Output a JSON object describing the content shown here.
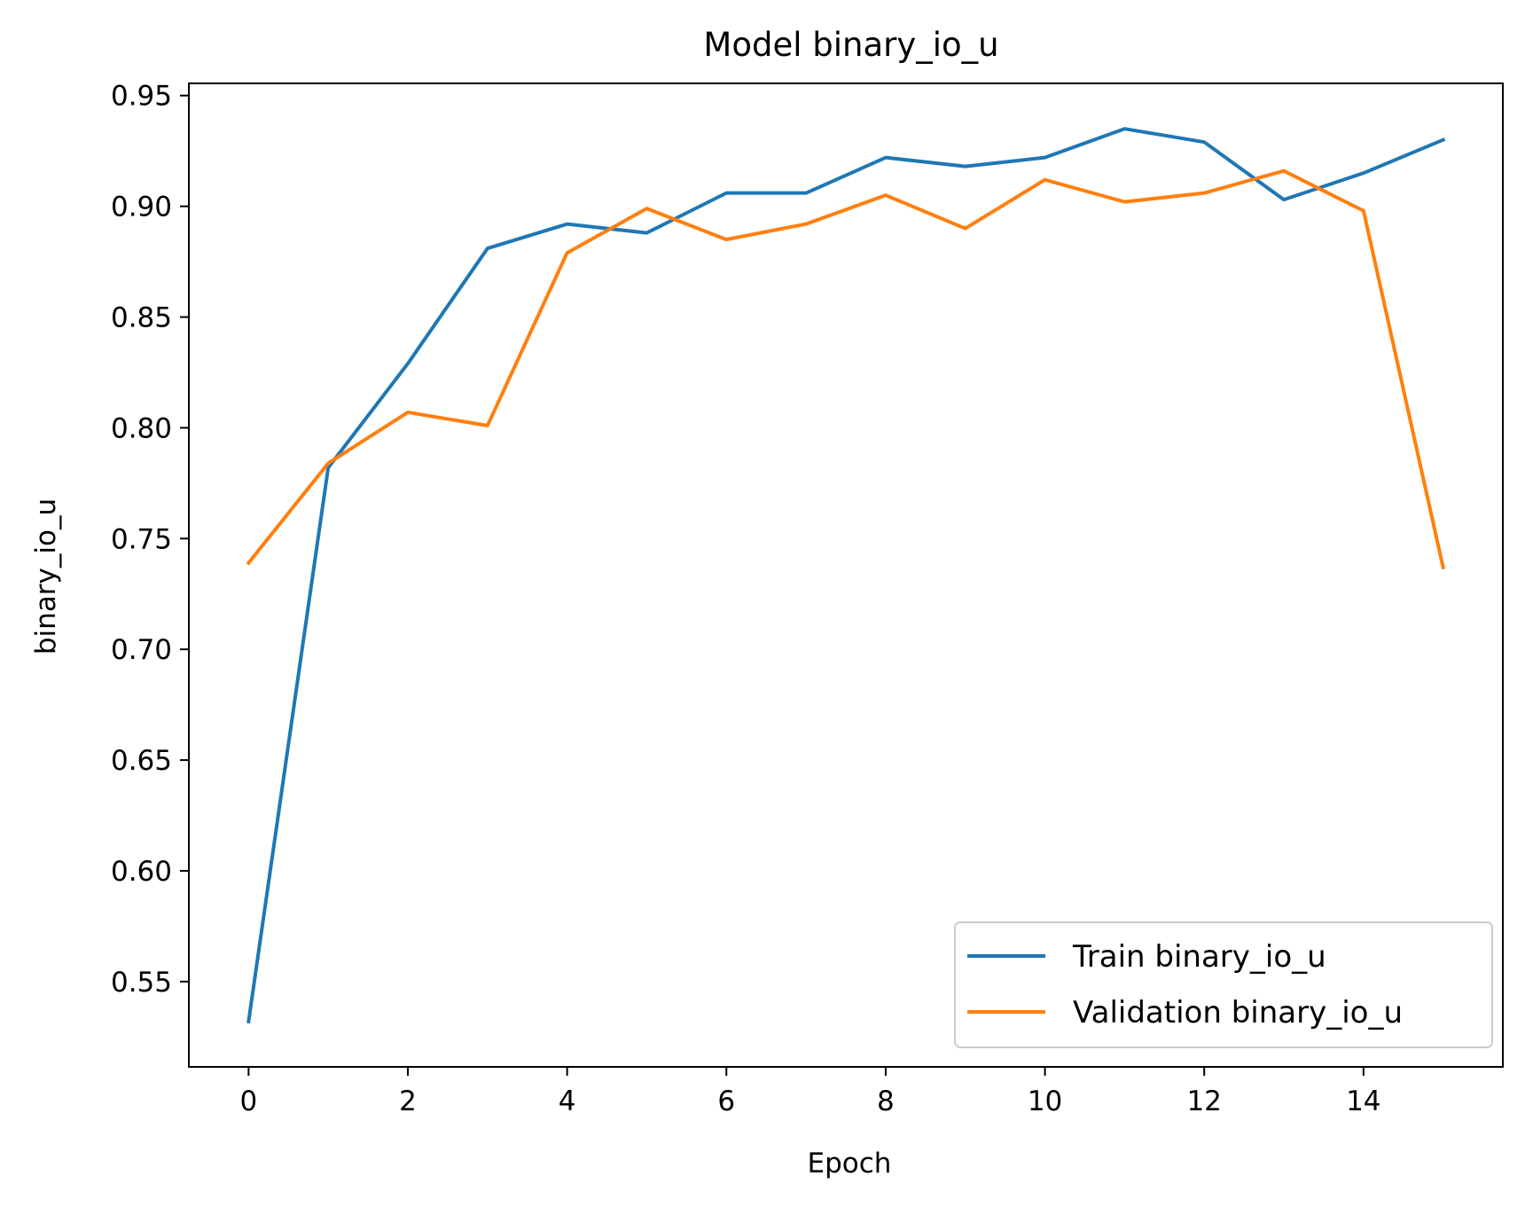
{
  "chart_data": {
    "type": "line",
    "title": "Model binary_io_u",
    "xlabel": "Epoch",
    "ylabel": "binary_io_u",
    "xlim": [
      -0.75,
      15.75
    ],
    "ylim": [
      0.5115,
      0.9555
    ],
    "x_ticks": [
      0,
      2,
      4,
      6,
      8,
      10,
      12,
      14
    ],
    "x_tick_labels": [
      "0",
      "2",
      "4",
      "6",
      "8",
      "10",
      "12",
      "14"
    ],
    "y_ticks": [
      0.55,
      0.6,
      0.65,
      0.7,
      0.75,
      0.8,
      0.85,
      0.9,
      0.95
    ],
    "y_tick_labels": [
      "0.55",
      "0.60",
      "0.65",
      "0.70",
      "0.75",
      "0.80",
      "0.85",
      "0.90",
      "0.95"
    ],
    "grid": false,
    "legend_position": "lower right",
    "x": [
      0,
      1,
      2,
      3,
      4,
      5,
      6,
      7,
      8,
      9,
      10,
      11,
      12,
      13,
      14,
      15
    ],
    "series": [
      {
        "name": "Train binary_io_u",
        "color": "#1f77b4",
        "values": [
          0.532,
          0.782,
          0.829,
          0.881,
          0.892,
          0.888,
          0.906,
          0.906,
          0.922,
          0.918,
          0.922,
          0.935,
          0.929,
          0.903,
          0.915,
          0.93
        ]
      },
      {
        "name": "Validation binary_io_u",
        "color": "#ff7f0e",
        "values": [
          0.739,
          0.784,
          0.807,
          0.801,
          0.879,
          0.899,
          0.885,
          0.892,
          0.905,
          0.89,
          0.912,
          0.902,
          0.906,
          0.916,
          0.898,
          0.737
        ]
      }
    ]
  }
}
